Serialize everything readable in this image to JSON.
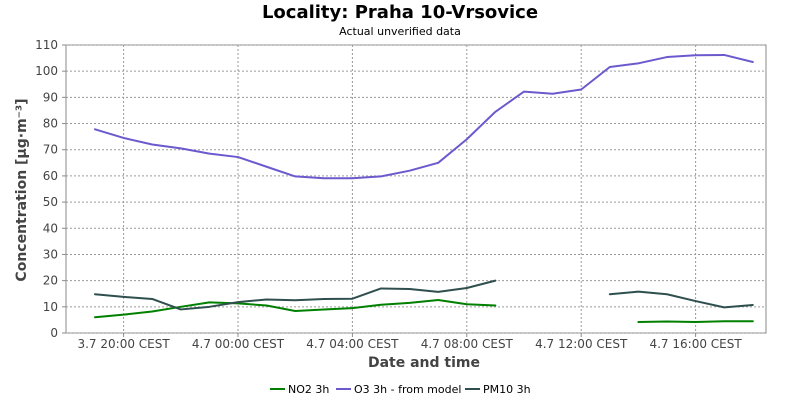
{
  "chart_data": {
    "type": "line",
    "title": "Locality: Praha 10-Vrsovice",
    "subtitle": "Actual unverified data",
    "xlabel": "Date and time",
    "ylabel": "Concentration [µg·m⁻³]",
    "ylim": [
      0,
      110
    ],
    "x_tick_labels": [
      "3.7 20:00 CEST",
      "4.7 00:00 CEST",
      "4.7 04:00 CEST",
      "4.7 08:00 CEST",
      "4.7 12:00 CEST",
      "4.7 16:00 CEST"
    ],
    "y_ticks": [
      0,
      10,
      20,
      30,
      40,
      50,
      60,
      70,
      80,
      90,
      100,
      110
    ],
    "grid": true,
    "legend_placement": "bottom",
    "x": [
      "3.7 19:00",
      "3.7 20:00",
      "3.7 21:00",
      "3.7 22:00",
      "3.7 23:00",
      "4.7 00:00",
      "4.7 01:00",
      "4.7 02:00",
      "4.7 03:00",
      "4.7 04:00",
      "4.7 05:00",
      "4.7 06:00",
      "4.7 07:00",
      "4.7 08:00",
      "4.7 09:00",
      "4.7 10:00",
      "4.7 11:00",
      "4.7 12:00",
      "4.7 13:00",
      "4.7 14:00",
      "4.7 15:00",
      "4.7 16:00",
      "4.7 17:00",
      "4.7 18:00"
    ],
    "series": [
      {
        "name": "NO2 3h",
        "color": "#008000",
        "values": [
          6,
          7,
          8.2,
          10,
          11.7,
          11.3,
          10.5,
          8.4,
          9,
          9.5,
          10.8,
          11.5,
          12.6,
          11,
          10.5,
          null,
          null,
          null,
          null,
          4.2,
          4.4,
          4.2,
          4.5,
          4.5
        ]
      },
      {
        "name": "O3 3h - from model",
        "color": "#6a5acd",
        "values": [
          77.8,
          74.5,
          72,
          70.5,
          68.5,
          67.2,
          63.5,
          59.8,
          59.1,
          59.1,
          59.8,
          62,
          65,
          74,
          84.5,
          92.2,
          91.4,
          93,
          101.6,
          103,
          105.4,
          106.1,
          106.2,
          103.5
        ]
      },
      {
        "name": "PM10 3h",
        "color": "#2f4f4f",
        "values": [
          14.8,
          13.8,
          13,
          9,
          10,
          11.8,
          12.8,
          12.5,
          13,
          13.1,
          17,
          16.8,
          15.7,
          17.2,
          20,
          null,
          null,
          null,
          14.8,
          15.8,
          14.8,
          12.2,
          9.8,
          10.7
        ]
      }
    ]
  }
}
